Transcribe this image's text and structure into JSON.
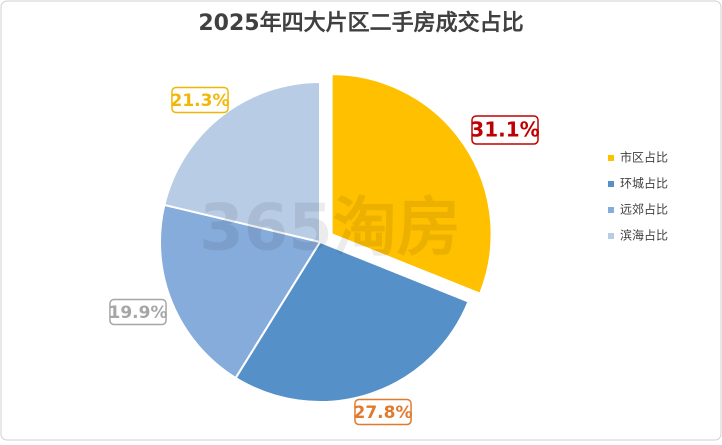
{
  "chart_data": {
    "type": "pie",
    "title": "2025年四大片区二手房成交占比",
    "categories": [
      "市区占比",
      "环城占比",
      "远郊占比",
      "滨海占比"
    ],
    "values": [
      31.1,
      27.8,
      19.9,
      21.3
    ],
    "value_labels": [
      "31.1%",
      "27.8%",
      "19.9%",
      "21.3%"
    ],
    "colors": [
      "#ffc000",
      "#5591c8",
      "#85acdb",
      "#b8cce6"
    ],
    "label_colors": [
      "#c00000",
      "#e07a2e",
      "#a6a6a6",
      "#f2b705"
    ],
    "exploded": [
      true,
      false,
      false,
      false
    ],
    "legend": "right",
    "watermark": "365淘房"
  }
}
